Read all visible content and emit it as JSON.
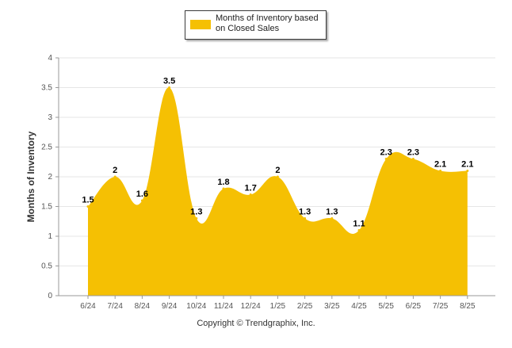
{
  "chart_data": {
    "type": "area",
    "categories": [
      "6/24",
      "7/24",
      "8/24",
      "9/24",
      "10/24",
      "11/24",
      "12/24",
      "1/25",
      "2/25",
      "3/25",
      "4/25",
      "5/25",
      "6/25",
      "7/25",
      "8/25"
    ],
    "series": [
      {
        "name": "Months of Inventory based on Closed Sales",
        "values": [
          1.5,
          2,
          1.6,
          3.5,
          1.3,
          1.8,
          1.7,
          2,
          1.3,
          1.3,
          1.1,
          2.3,
          2.3,
          2.1,
          2.1
        ]
      }
    ],
    "data_labels": [
      "1.5",
      "2",
      "1.6",
      "3.5",
      "1.3",
      "1.8",
      "1.7",
      "2",
      "1.3",
      "1.3",
      "1.1",
      "2.3",
      "2.3",
      "2.1",
      "2.1"
    ],
    "ylabel": "Months of Inventory",
    "xlabel": "",
    "ylim": [
      0,
      4
    ],
    "yticks": [
      "0",
      "0.5",
      "1",
      "1.5",
      "2",
      "2.5",
      "3",
      "3.5",
      "4"
    ],
    "grid": true,
    "legend_position": "top-center",
    "colors": {
      "area": "#F5C003",
      "grid": "#E6E6E6",
      "axis": "#999999"
    }
  },
  "legend": {
    "label": "Months of Inventory based on Closed Sales"
  },
  "footer": {
    "copyright": "Copyright © Trendgraphix, Inc."
  }
}
